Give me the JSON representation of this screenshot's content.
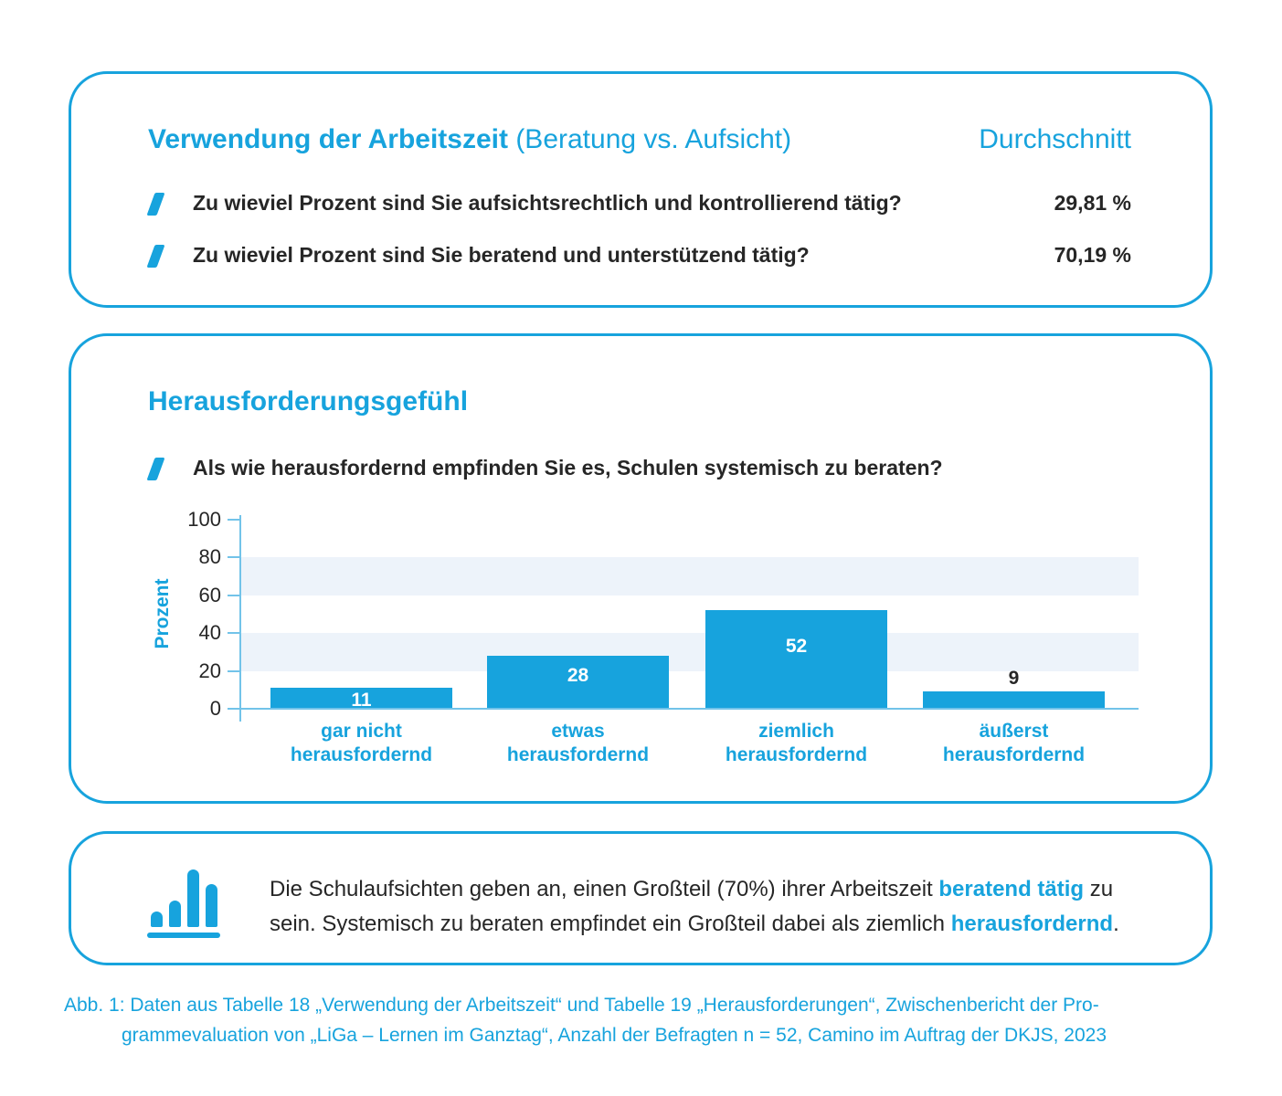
{
  "colors": {
    "brand_blue": "#17a3dd",
    "dark_text": "#262626",
    "band_light_blue": "#edf3fa",
    "axis_light_blue": "#72c3e9",
    "bar_label_white": "#ffffff"
  },
  "box1": {
    "title_bold": "Verwendung der Arbeitszeit",
    "title_regular": " (Beratung vs. Aufsicht)",
    "column_header": "Durchschnitt",
    "rows": [
      {
        "question": "Zu wieviel Prozent sind Sie aufsichtsrechtlich und kontrollierend tätig?",
        "value": "29,81 %"
      },
      {
        "question": "Zu wieviel Prozent sind Sie beratend und unterstützend tätig?",
        "value": "70,19 %"
      }
    ]
  },
  "box2": {
    "title": "Herausforderungsgefühl",
    "question": "Als wie herausfordernd empfinden Sie es, Schulen systemisch zu beraten?"
  },
  "chart_data": {
    "type": "bar",
    "categories": [
      "gar nicht\nherausfordernd",
      "etwas\nherausfordernd",
      "ziemlich\nherausfordernd",
      "äußerst\nherausfordernd"
    ],
    "values": [
      11,
      28,
      52,
      9
    ],
    "value_labels": [
      "11",
      "28",
      "52",
      "9"
    ],
    "title": "",
    "xlabel": "",
    "ylabel": "Prozent",
    "ylim": [
      0,
      100
    ],
    "yticks": [
      0,
      20,
      40,
      60,
      80,
      100
    ],
    "shaded_bands": [
      [
        20,
        40
      ],
      [
        60,
        80
      ]
    ],
    "legend": "none",
    "bar_color": "#17a3dd"
  },
  "box3": {
    "icon": "bar-chart-icon",
    "lines": [
      [
        {
          "t": "Die Schulaufsichten geben an, einen Großteil (70%) ihrer Arbeitszeit ",
          "hl": false
        },
        {
          "t": "beratend tätig",
          "hl": true
        },
        {
          "t": " zu",
          "hl": false
        }
      ],
      [
        {
          "t": "sein. Systemisch zu beraten empfindet ein Großteil dabei als ziemlich ",
          "hl": false
        },
        {
          "t": "herausfordernd",
          "hl": true
        },
        {
          "t": ".",
          "hl": false
        }
      ]
    ]
  },
  "caption": {
    "lines": [
      "Abb. 1: Daten aus Tabelle 18 „Verwendung der Arbeitszeit“ und Tabelle 19 „Herausforderungen“, Zwischenbericht der Pro-",
      "grammevaluation von „LiGa – Lernen im Ganztag“, Anzahl der Befragten n = 52, Camino im Auftrag der DKJS, 2023"
    ]
  }
}
